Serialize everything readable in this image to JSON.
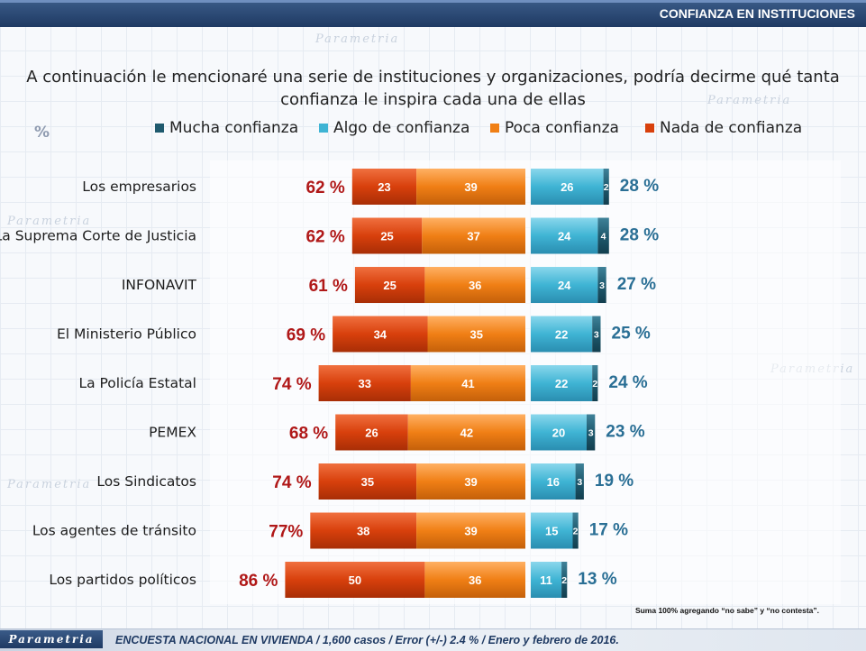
{
  "header": {
    "title": "CONFIANZA EN INSTITUCIONES"
  },
  "question": {
    "line1": "A continuación le mencionaré una serie de instituciones y organizaciones, podría decirme qué tanta",
    "line2": "confianza le inspira cada una de ellas"
  },
  "decor": {
    "percent_symbol": "%",
    "watermark": "Parametria"
  },
  "colors": {
    "mucha": "#1f5a6e",
    "algo": "#3fb4d4",
    "poca": "#f07f15",
    "nada": "#d8400c",
    "neg_total": "#b01818",
    "pos_total": "#2a6f95"
  },
  "legend": [
    {
      "key": "mucha",
      "label": "Mucha confianza"
    },
    {
      "key": "algo",
      "label": "Algo de confianza"
    },
    {
      "key": "poca",
      "label": "Poca confianza"
    },
    {
      "key": "nada",
      "label": "Nada de confianza"
    }
  ],
  "chart_data": {
    "type": "bar",
    "orientation": "horizontal-diverging",
    "categories": [
      "Los empresarios",
      "La Suprema Corte de Justicia",
      "INFONAVIT",
      "El Ministerio Público",
      "La Policía Estatal",
      "PEMEX",
      "Los Sindicatos",
      "Los agentes de tránsito",
      "Los partidos políticos"
    ],
    "series": [
      {
        "name": "Nada de confianza",
        "key": "nada",
        "values": [
          23,
          25,
          25,
          34,
          33,
          26,
          35,
          38,
          50
        ]
      },
      {
        "name": "Poca confianza",
        "key": "poca",
        "values": [
          39,
          37,
          36,
          35,
          41,
          42,
          39,
          39,
          36
        ]
      },
      {
        "name": "Algo de confianza",
        "key": "algo",
        "values": [
          26,
          24,
          24,
          22,
          22,
          20,
          16,
          15,
          11
        ]
      },
      {
        "name": "Mucha confianza",
        "key": "mucha",
        "values": [
          2,
          4,
          3,
          3,
          2,
          3,
          3,
          2,
          2
        ]
      }
    ],
    "negative_totals": [
      "62 %",
      "62 %",
      "61 %",
      "69 %",
      "74 %",
      "68 %",
      "74 %",
      "77%",
      "86 %"
    ],
    "positive_totals": [
      "28 %",
      "28 %",
      "27 %",
      "25 %",
      "24 %",
      "23 %",
      "19 %",
      "17 %",
      "13 %"
    ],
    "legend_position": "top"
  },
  "note": "Suma 100% agregando “no sabe” y “no contesta”.",
  "footer": {
    "logo": "Parametria",
    "text": "ENCUESTA NACIONAL EN VIVIENDA / 1,600 casos / Error (+/-) 2.4 % / Enero y febrero de 2016."
  }
}
